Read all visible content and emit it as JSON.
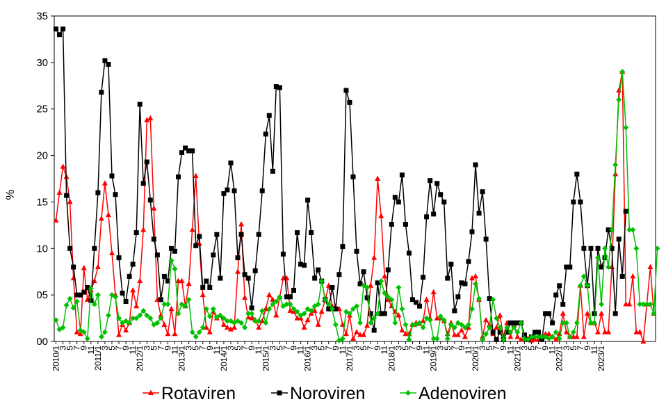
{
  "chart_data": {
    "type": "line",
    "title": "",
    "xlabel": "",
    "ylabel": "%",
    "ylim": [
      0,
      35
    ],
    "y_ticks": [
      "00",
      "05",
      "10",
      "15",
      "20",
      "25",
      "30",
      "35"
    ],
    "x_tick_labels": [
      "2010/1",
      "3",
      "5",
      "7",
      "9",
      "11",
      "2011/1",
      "3",
      "5",
      "7",
      "9",
      "11",
      "2012/1",
      "3",
      "5",
      "7",
      "9",
      "11",
      "2013/1",
      "3",
      "5",
      "7",
      "9",
      "11",
      "2014/1",
      "3",
      "5",
      "7",
      "9",
      "11",
      "2015/1",
      "3",
      "5",
      "7",
      "9",
      "11",
      "2016/1",
      "3",
      "5",
      "7",
      "9",
      "11",
      "2017/1",
      "3",
      "5",
      "7",
      "9",
      "11",
      "2018/1",
      "3",
      "5",
      "7",
      "9",
      "11",
      "2019/1",
      "3",
      "5",
      "7",
      "9",
      "11",
      "2020/1",
      "3",
      "5",
      "7",
      "9",
      "11",
      "2021/1",
      "3",
      "5",
      "7",
      "9",
      "11",
      "2022/1",
      "3",
      "5",
      "7",
      "9",
      "11",
      "2023/1"
    ],
    "x_start": "2010/1",
    "x_end": "2023/1",
    "grid": false,
    "legend_position": "bottom",
    "series": [
      {
        "name": "Rotaviren",
        "color": "#ff0000",
        "marker": "triangle",
        "values": [
          13,
          16,
          18.8,
          17.7,
          15,
          6.8,
          1,
          0.8,
          7.9,
          4.5,
          5.5,
          6.5,
          8,
          13.2,
          17,
          13.6,
          9.5,
          5,
          0.7,
          1.8,
          1.2,
          2,
          5.5,
          3.8,
          6.5,
          12,
          23.8,
          24,
          14.3,
          4.5,
          2.8,
          1.8,
          0.8,
          3.5,
          0.8,
          6.5,
          6.5,
          3.8,
          6.2,
          12,
          17.8,
          10.5,
          5,
          1.5,
          1,
          3.2,
          2.5,
          2.8,
          1.8,
          1.5,
          1.3,
          1.5,
          7.5,
          12.6,
          4.7,
          2.6,
          2.5,
          2.3,
          1.5,
          2.2,
          3.5,
          5,
          4.5,
          2.8,
          4.8,
          6.8,
          6.8,
          3.3,
          3.2,
          2.5,
          2.5,
          1.5,
          2.3,
          3,
          3.3,
          1.8,
          3.2,
          4.5,
          6,
          3.8,
          3.5,
          3.5,
          1.8,
          0.8,
          2.8,
          0.3,
          1,
          0.7,
          0.7,
          1.7,
          6,
          9,
          17.5,
          13.5,
          7,
          4.5,
          3.8,
          3.2,
          2.8,
          1.2,
          0.8,
          0.8,
          1.8,
          2,
          1.9,
          2.2,
          4.5,
          2.5,
          5.3,
          2.5,
          2.5,
          2.2,
          0.8,
          2,
          0.7,
          0.7,
          1.2,
          0.5,
          1.5,
          6.8,
          7,
          4.5,
          0.5,
          2.3,
          1.8,
          0.8,
          1.5,
          2.8,
          0.5,
          2,
          0.5,
          1.8,
          0.5,
          0.2,
          0.3,
          0.3,
          0.1,
          0.2,
          0.2,
          0.2,
          0.8,
          0.8,
          0.5,
          0.2,
          0.8,
          3,
          1,
          0.5,
          0.5,
          0.5,
          6,
          0.5,
          3,
          2,
          2,
          1,
          3,
          1,
          1,
          8,
          18,
          27,
          29,
          4,
          4,
          7,
          1,
          1,
          0,
          4,
          8,
          3
        ]
      },
      {
        "name": "Noroviren",
        "color": "#000000",
        "marker": "square",
        "values": [
          33.6,
          33,
          33.6,
          15.7,
          10,
          8,
          5,
          5,
          5.3,
          5.8,
          4.4,
          10,
          16,
          26.8,
          30.2,
          29.8,
          17.8,
          15.8,
          9,
          5.2,
          4.3,
          7,
          8.3,
          11.7,
          25.5,
          17,
          19.3,
          15.2,
          11,
          9.3,
          4.5,
          7,
          6.5,
          10,
          9.7,
          17.7,
          20.3,
          20.8,
          20.5,
          20.5,
          10.3,
          11.3,
          5.8,
          6.5,
          5.8,
          9.3,
          11.5,
          6.8,
          15.9,
          16.3,
          19.2,
          16.2,
          9,
          11.5,
          7.2,
          6.8,
          3.6,
          7.6,
          11.5,
          16.2,
          22.3,
          24.3,
          18.3,
          27.4,
          27.3,
          9.4,
          4.8,
          4.8,
          5.5,
          11.7,
          8.3,
          8.2,
          15.2,
          11.7,
          6.8,
          7.7,
          6.5,
          4.5,
          3.5,
          5.8,
          3.5,
          7.2,
          10.2,
          27,
          25.7,
          17.7,
          9.7,
          6.2,
          7.5,
          4.7,
          3,
          1.2,
          6.3,
          3,
          3,
          7.7,
          12.6,
          15.5,
          15,
          17.9,
          12.6,
          9.5,
          4.5,
          4.2,
          3.8,
          6.9,
          13.4,
          17.3,
          13.7,
          17,
          15.8,
          15,
          6.8,
          8.3,
          3.3,
          4.8,
          6.3,
          6.2,
          8.6,
          11.8,
          19,
          13.8,
          16.1,
          11,
          4.6,
          1,
          0.2,
          1,
          0.2,
          1,
          2,
          2,
          2,
          2,
          0.7,
          0.2,
          0.5,
          1,
          1,
          0.2,
          3,
          3,
          2,
          5,
          6,
          4,
          8,
          8,
          15,
          18,
          15,
          10,
          6,
          10,
          3,
          10,
          8,
          9,
          12,
          10,
          3,
          11,
          7,
          14
        ]
      },
      {
        "name": "Adenoviren",
        "color": "#00c000",
        "marker": "diamond",
        "values": [
          2.3,
          1.3,
          1.5,
          3.9,
          4.6,
          3.6,
          4.3,
          1.2,
          1,
          0.3,
          5.7,
          4,
          5,
          0.5,
          1,
          2.8,
          5,
          4.8,
          2.5,
          2,
          2.2,
          2,
          2.5,
          2.5,
          2.8,
          3.3,
          2.8,
          2.5,
          1.8,
          2,
          2.5,
          4,
          4,
          8.7,
          7.8,
          3,
          4,
          3.8,
          4.5,
          1,
          0.5,
          1,
          1.5,
          3.5,
          2.7,
          3.5,
          2.6,
          2.8,
          2.5,
          2.2,
          2.2,
          2,
          2.2,
          2,
          1.5,
          3,
          3,
          2.2,
          2.2,
          3.3,
          2,
          3.5,
          4,
          4.3,
          4.8,
          3.8,
          4,
          4,
          3.5,
          3.2,
          2.8,
          3,
          3.5,
          3.3,
          3.8,
          4,
          6.5,
          4.5,
          4,
          3.5,
          1.8,
          0.1,
          0.3,
          3.2,
          3,
          3.5,
          3.8,
          2,
          6,
          5.8,
          2,
          2.5,
          3,
          6.5,
          5.2,
          4.8,
          4.5,
          2,
          5.8,
          3.5,
          1.8,
          0.2,
          1.8,
          1.8,
          2,
          1.5,
          2.5,
          2.3,
          0.3,
          0.3,
          2.7,
          2.3,
          0.3,
          1.8,
          1.5,
          2,
          1.8,
          1.5,
          1.8,
          3.5,
          6.2,
          4.6,
          0.2,
          0.8,
          1.5,
          4.5,
          2.5,
          1.5,
          0.2,
          1.5,
          1,
          1.5,
          1,
          2,
          0.3,
          0.2,
          0.5,
          0.5,
          0.5,
          0.5,
          0.5,
          0.3,
          0.5,
          1,
          0.3,
          2,
          2,
          0.5,
          1,
          2,
          6,
          7,
          6,
          2,
          2,
          9,
          4,
          10,
          8,
          12,
          19,
          26,
          29,
          23,
          12,
          12,
          10,
          4,
          4,
          4,
          4,
          3,
          10
        ]
      }
    ]
  }
}
